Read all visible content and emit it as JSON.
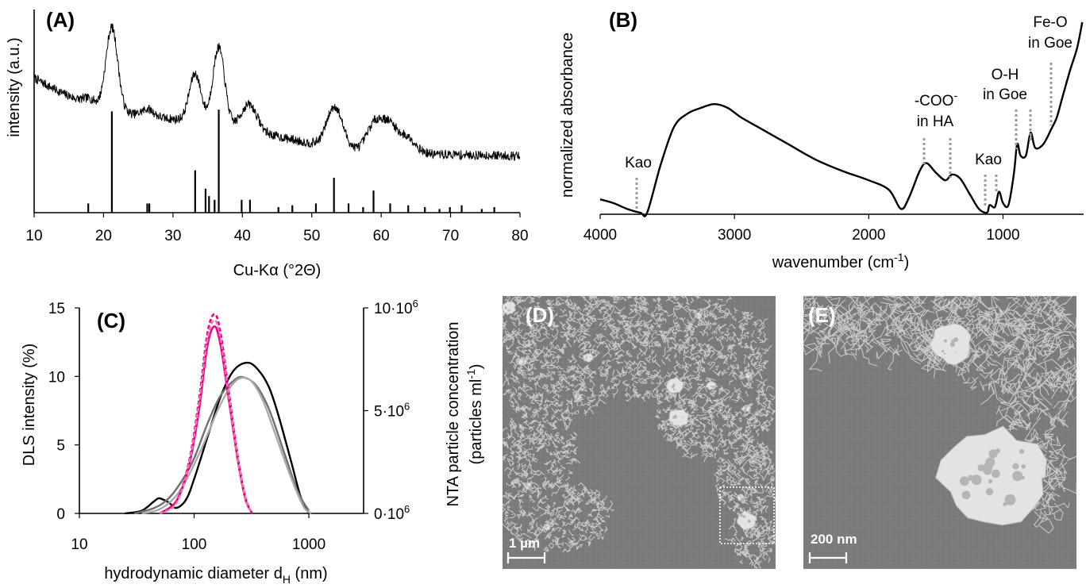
{
  "panels": {
    "a": {
      "label": "(A)",
      "xlabel": "Cu-Kα (°2Θ)",
      "ylabel": "intensity (a.u.)",
      "xticks": [
        "10",
        "20",
        "30",
        "40",
        "50",
        "60",
        "70",
        "80"
      ]
    },
    "b": {
      "label": "(B)",
      "xlabel": "wavenumber (cm",
      "xlabel_sup": "-1",
      "xlabel_end": ")",
      "ylabel": "normalized absorbance",
      "xticks": [
        "4000",
        "3000",
        "2000",
        "1000"
      ],
      "annotations": {
        "kao1": "Kao",
        "coo_line1": "-COO",
        "coo_sup": "-",
        "coo_line2": "in HA",
        "kao2": "Kao",
        "oh_line1": "O-H",
        "oh_line2": "in Goe",
        "feo_line1": "Fe-O",
        "feo_line2": "in Goe"
      }
    },
    "c": {
      "label": "(C)",
      "xlabel_main": "hydrodynamic diameter d",
      "xlabel_sub": "H",
      "xlabel_end": " (nm)",
      "ylabel_left": "DLS intensity (%)",
      "ylabel_right_line1": "NTA particle concentration",
      "ylabel_right_line2_main": "(particles ml",
      "ylabel_right_line2_sup": "-1",
      "ylabel_right_line2_end": ")",
      "xticks": [
        "10",
        "100",
        "1000"
      ],
      "yticks_left": [
        "0",
        "5",
        "10",
        "15"
      ],
      "yticks_right": [
        {
          "base": "0·10",
          "exp": "6"
        },
        {
          "base": "5·10",
          "exp": "6"
        },
        {
          "base": "10·10",
          "exp": "6"
        }
      ]
    },
    "d": {
      "label": "(D)",
      "scalebar": "1 µm"
    },
    "e": {
      "label": "(E)",
      "scalebar": "200 nm"
    }
  },
  "chart_data": [
    {
      "panel": "A",
      "type": "line",
      "xlabel": "Cu-Kα (°2Θ)",
      "ylabel": "intensity (a.u.)",
      "xlim": [
        10,
        80
      ],
      "y_units": "arbitrary",
      "peaks": [
        {
          "x": 21.2,
          "height": 0.45
        },
        {
          "x": 33.2,
          "height": 0.26
        },
        {
          "x": 36.6,
          "height": 0.42
        },
        {
          "x": 41.0,
          "height": 0.14
        },
        {
          "x": 53.3,
          "height": 0.22
        },
        {
          "x": 59.1,
          "height": 0.15
        },
        {
          "x": 61.3,
          "height": 0.14
        },
        {
          "x": 63.9,
          "height": 0.08
        },
        {
          "x": 26.4,
          "height": 0.04
        },
        {
          "x": 18.0,
          "height": 0.03
        }
      ],
      "reference_sticks": [
        {
          "x": 17.8,
          "h": 0.05
        },
        {
          "x": 21.2,
          "h": 0.55
        },
        {
          "x": 26.3,
          "h": 0.05
        },
        {
          "x": 26.6,
          "h": 0.05
        },
        {
          "x": 33.2,
          "h": 0.23
        },
        {
          "x": 34.7,
          "h": 0.13
        },
        {
          "x": 35.2,
          "h": 0.09
        },
        {
          "x": 36.0,
          "h": 0.07
        },
        {
          "x": 36.6,
          "h": 0.56
        },
        {
          "x": 39.9,
          "h": 0.07
        },
        {
          "x": 41.1,
          "h": 0.07
        },
        {
          "x": 45.2,
          "h": 0.03
        },
        {
          "x": 47.2,
          "h": 0.04
        },
        {
          "x": 50.6,
          "h": 0.05
        },
        {
          "x": 53.2,
          "h": 0.19
        },
        {
          "x": 55.3,
          "h": 0.05
        },
        {
          "x": 57.4,
          "h": 0.03
        },
        {
          "x": 58.9,
          "h": 0.12
        },
        {
          "x": 61.3,
          "h": 0.05
        },
        {
          "x": 63.9,
          "h": 0.04
        },
        {
          "x": 66.3,
          "h": 0.03
        },
        {
          "x": 68.4,
          "h": 0.02
        },
        {
          "x": 69.9,
          "h": 0.03
        },
        {
          "x": 71.6,
          "h": 0.04
        },
        {
          "x": 74.5,
          "h": 0.02
        },
        {
          "x": 76.3,
          "h": 0.03
        }
      ]
    },
    {
      "panel": "B",
      "type": "line",
      "xlabel": "wavenumber (cm-1)",
      "ylabel": "normalized absorbance",
      "xlim": [
        4000,
        400
      ],
      "x_reversed": true,
      "y_units": "arbitrary",
      "points": [
        [
          4000,
          0.07
        ],
        [
          3900,
          0.05
        ],
        [
          3800,
          0.02
        ],
        [
          3700,
          0.0
        ],
        [
          3650,
          0.0
        ],
        [
          3550,
          0.25
        ],
        [
          3450,
          0.45
        ],
        [
          3350,
          0.52
        ],
        [
          3250,
          0.55
        ],
        [
          3150,
          0.57
        ],
        [
          3050,
          0.55
        ],
        [
          2950,
          0.5
        ],
        [
          2800,
          0.44
        ],
        [
          2600,
          0.36
        ],
        [
          2400,
          0.28
        ],
        [
          2200,
          0.22
        ],
        [
          2000,
          0.17
        ],
        [
          1850,
          0.12
        ],
        [
          1760,
          0.02
        ],
        [
          1700,
          0.08
        ],
        [
          1620,
          0.22
        ],
        [
          1570,
          0.26
        ],
        [
          1500,
          0.21
        ],
        [
          1430,
          0.17
        ],
        [
          1380,
          0.2
        ],
        [
          1320,
          0.18
        ],
        [
          1250,
          0.1
        ],
        [
          1180,
          0.02
        ],
        [
          1120,
          0.0
        ],
        [
          1100,
          0.04
        ],
        [
          1060,
          0.03
        ],
        [
          1030,
          0.11
        ],
        [
          1000,
          0.05
        ],
        [
          960,
          0.04
        ],
        [
          920,
          0.2
        ],
        [
          895,
          0.36
        ],
        [
          870,
          0.3
        ],
        [
          830,
          0.3
        ],
        [
          795,
          0.42
        ],
        [
          760,
          0.34
        ],
        [
          700,
          0.36
        ],
        [
          640,
          0.44
        ],
        [
          600,
          0.5
        ],
        [
          560,
          0.6
        ],
        [
          500,
          0.75
        ],
        [
          450,
          0.86
        ],
        [
          410,
          1.0
        ]
      ],
      "annotations": [
        {
          "text": "Kao",
          "x": 3700
        },
        {
          "text": "-COO- in HA",
          "x": [
            1570,
            1380
          ]
        },
        {
          "text": "Kao",
          "x": [
            1100,
            1030
          ]
        },
        {
          "text": "O-H in Goe",
          "x": [
            905,
            795
          ]
        },
        {
          "text": "Fe-O in Goe",
          "x": 630
        }
      ]
    },
    {
      "panel": "C",
      "type": "line",
      "x_scale": "log",
      "xlim": [
        10,
        3000
      ],
      "ylim_left": [
        0,
        15
      ],
      "ylim_right": [
        0,
        10000000
      ],
      "xlabel": "hydrodynamic diameter dH (nm)",
      "ylabel_left": "DLS intensity (%)",
      "ylabel_right": "NTA particle concentration (particles ml-1)",
      "series": [
        {
          "axis": "left",
          "color": "#000000",
          "style": "solid",
          "points": [
            [
              25,
              0
            ],
            [
              35,
              0.2
            ],
            [
              45,
              0.9
            ],
            [
              50,
              1.1
            ],
            [
              60,
              0.8
            ],
            [
              70,
              0.4
            ],
            [
              85,
              1.0
            ],
            [
              100,
              2.5
            ],
            [
              130,
              5.5
            ],
            [
              170,
              8.5
            ],
            [
              220,
              10.4
            ],
            [
              290,
              11.0
            ],
            [
              360,
              10.5
            ],
            [
              450,
              9.2
            ],
            [
              550,
              7.0
            ],
            [
              700,
              3.8
            ],
            [
              850,
              1.2
            ],
            [
              1000,
              0
            ]
          ]
        },
        {
          "axis": "left",
          "color": "#707070",
          "style": "solid",
          "points": [
            [
              30,
              0
            ],
            [
              45,
              0.4
            ],
            [
              60,
              1.1
            ],
            [
              80,
              2.5
            ],
            [
              100,
              4.0
            ],
            [
              130,
              6.5
            ],
            [
              170,
              8.6
            ],
            [
              230,
              9.8
            ],
            [
              280,
              9.9
            ],
            [
              350,
              9.3
            ],
            [
              450,
              7.6
            ],
            [
              600,
              4.6
            ],
            [
              800,
              1.6
            ],
            [
              1000,
              0.2
            ]
          ]
        },
        {
          "axis": "left",
          "color": "#a9a9a9",
          "style": "solid",
          "points": [
            [
              35,
              0
            ],
            [
              50,
              0.3
            ],
            [
              70,
              1.3
            ],
            [
              90,
              2.8
            ],
            [
              120,
              5.0
            ],
            [
              160,
              7.5
            ],
            [
              210,
              9.3
            ],
            [
              260,
              9.9
            ],
            [
              320,
              9.6
            ],
            [
              400,
              8.2
            ],
            [
              520,
              5.6
            ],
            [
              700,
              2.6
            ],
            [
              900,
              0.5
            ],
            [
              1050,
              0
            ]
          ]
        },
        {
          "axis": "right",
          "color": "#e6007e",
          "style": "solid",
          "points": [
            [
              50,
              0
            ],
            [
              70,
              600000
            ],
            [
              90,
              2300000
            ],
            [
              110,
              5000000
            ],
            [
              130,
              8100000
            ],
            [
              150,
              9100000
            ],
            [
              170,
              8200000
            ],
            [
              200,
              5600000
            ],
            [
              240,
              2600000
            ],
            [
              280,
              700000
            ],
            [
              320,
              0
            ]
          ]
        },
        {
          "axis": "right",
          "color": "#e6007e",
          "style": "dashed",
          "points": [
            [
              50,
              0
            ],
            [
              70,
              600000
            ],
            [
              90,
              2500000
            ],
            [
              110,
              5500000
            ],
            [
              130,
              8700000
            ],
            [
              150,
              9700000
            ],
            [
              170,
              8800000
            ],
            [
              200,
              6000000
            ],
            [
              240,
              2800000
            ],
            [
              280,
              800000
            ],
            [
              320,
              0
            ]
          ]
        },
        {
          "axis": "right",
          "color": "#f072b6",
          "style": "dashed",
          "points": [
            [
              50,
              0
            ],
            [
              70,
              500000
            ],
            [
              90,
              2400000
            ],
            [
              110,
              5300000
            ],
            [
              130,
              8400000
            ],
            [
              150,
              9400000
            ],
            [
              170,
              8500000
            ],
            [
              200,
              5800000
            ],
            [
              240,
              2700000
            ],
            [
              280,
              750000
            ],
            [
              320,
              0
            ]
          ]
        }
      ]
    }
  ]
}
